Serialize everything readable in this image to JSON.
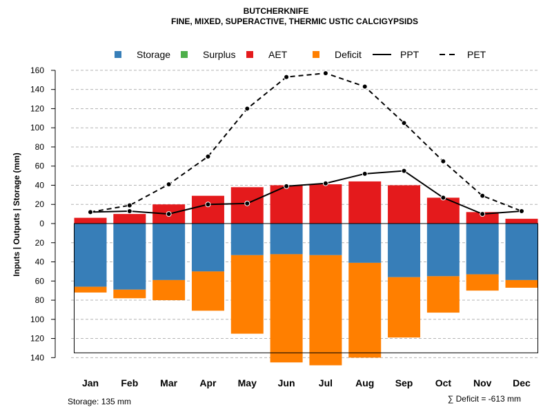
{
  "chart_data": {
    "type": "bar",
    "title": "BUTCHERKNIFE",
    "subtitle": "FINE, MIXED, SUPERACTIVE, THERMIC USTIC CALCIGYPSIDS",
    "ylabel": "Inputs | Outputs | Storage    (mm)",
    "ylim": [
      -140,
      160
    ],
    "yticks": [
      160,
      140,
      120,
      100,
      80,
      60,
      40,
      20,
      0,
      -20,
      -40,
      -60,
      -80,
      -100,
      -120,
      -140
    ],
    "ytick_labels": [
      "160",
      "140",
      "120",
      "100",
      "80",
      "60",
      "40",
      "20",
      "0",
      "20",
      "40",
      "60",
      "80",
      "100",
      "120",
      "140"
    ],
    "categories": [
      "Jan",
      "Feb",
      "Mar",
      "Apr",
      "May",
      "Jun",
      "Jul",
      "Aug",
      "Sep",
      "Oct",
      "Nov",
      "Dec"
    ],
    "series": [
      {
        "name": "Storage",
        "kind": "bar-below",
        "color": "#377EB8",
        "values": [
          66,
          69,
          59,
          50,
          33,
          32,
          33,
          41,
          56,
          55,
          53,
          59
        ]
      },
      {
        "name": "Surplus",
        "kind": "bar-above",
        "color": "#4DAF4A",
        "values": [
          0,
          0,
          0,
          0,
          0,
          0,
          0,
          0,
          0,
          0,
          0,
          0
        ]
      },
      {
        "name": "AET",
        "kind": "bar-above",
        "color": "#E41A1C",
        "values": [
          6,
          10,
          20,
          29,
          38,
          40,
          41,
          44,
          40,
          27,
          12,
          5
        ]
      },
      {
        "name": "Deficit",
        "kind": "bar-below-stacked",
        "color": "#FF7F00",
        "values": [
          6,
          9,
          21,
          41,
          82,
          113,
          115,
          99,
          63,
          38,
          17,
          8
        ]
      },
      {
        "name": "PPT",
        "kind": "line-solid",
        "color": "#000000",
        "values": [
          12,
          13,
          10,
          20,
          21,
          39,
          42,
          52,
          55,
          27,
          10,
          13
        ]
      },
      {
        "name": "PET",
        "kind": "line-dashed",
        "color": "#000000",
        "values": [
          12,
          19,
          41,
          70,
          120,
          153,
          157,
          143,
          105,
          65,
          29,
          13
        ]
      }
    ],
    "storage_capacity": 135,
    "grid": true,
    "legend_position": "top"
  },
  "footer": {
    "storage_label": "Storage: 135 mm",
    "deficit_label": "∑ Deficit = -613 mm"
  }
}
